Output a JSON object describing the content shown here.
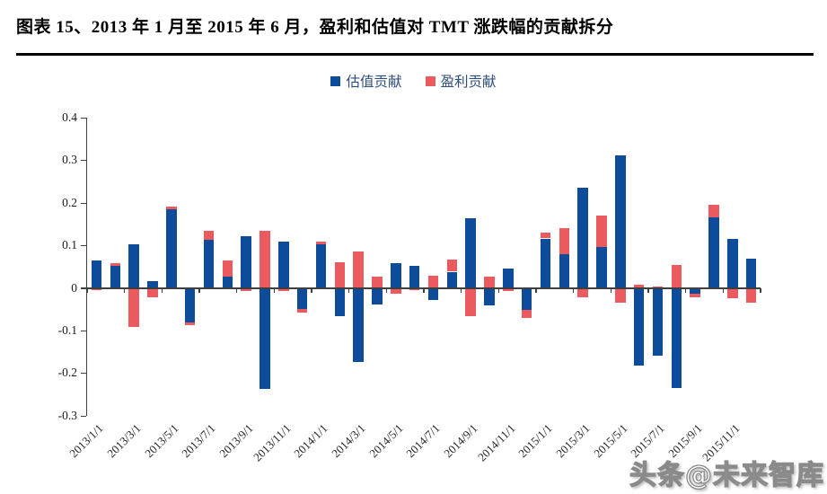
{
  "figure": {
    "title": "图表 15、2013 年 1 月至 2015 年 6 月，盈利和估值对 TMT 涨跌幅的贡献拆分"
  },
  "watermark": {
    "text": "头条@未来智库"
  },
  "chart_data": {
    "type": "bar",
    "stacked": true,
    "title": "",
    "xlabel": "",
    "ylabel": "",
    "grid": false,
    "legend_position": "top-center",
    "ylim": [
      -0.3,
      0.4
    ],
    "yticks": [
      0.4,
      0.3,
      0.2,
      0.1,
      0,
      -0.1,
      -0.2,
      -0.3
    ],
    "x_tick_labels": [
      "2013/1/1",
      "2013/3/1",
      "2013/5/1",
      "2013/7/1",
      "2013/9/1",
      "2013/11/1",
      "2014/1/1",
      "2014/3/1",
      "2014/5/1",
      "2014/7/1",
      "2014/9/1",
      "2014/11/1",
      "2015/1/1",
      "2015/3/1",
      "2015/5/1",
      "2015/7/1",
      "2015/9/1",
      "2015/11/1"
    ],
    "categories": [
      "2013/1",
      "2013/2",
      "2013/3",
      "2013/4",
      "2013/5",
      "2013/6",
      "2013/7",
      "2013/8",
      "2013/9",
      "2013/10",
      "2013/11",
      "2013/12",
      "2014/1",
      "2014/2",
      "2014/3",
      "2014/4",
      "2014/5",
      "2014/6",
      "2014/7",
      "2014/8",
      "2014/9",
      "2014/10",
      "2014/11",
      "2014/12",
      "2015/1",
      "2015/2",
      "2015/3",
      "2015/4",
      "2015/5",
      "2015/6",
      "2015/7",
      "2015/8",
      "2015/9",
      "2015/10",
      "2015/11",
      "2015/12"
    ],
    "series": [
      {
        "name": "估值贡献",
        "color": "#0D4C9A",
        "values": [
          0.065,
          0.052,
          0.104,
          0.017,
          0.185,
          -0.079,
          0.115,
          0.027,
          0.123,
          -0.237,
          0.109,
          -0.049,
          0.104,
          -0.065,
          -0.173,
          -0.037,
          0.06,
          0.053,
          -0.028,
          0.039,
          0.164,
          -0.04,
          0.046,
          -0.051,
          0.117,
          0.081,
          0.237,
          0.097,
          0.312,
          -0.182,
          -0.158,
          -0.234,
          -0.012,
          0.166,
          0.117,
          0.07
        ]
      },
      {
        "name": "盈利贡献",
        "color": "#EB5A5E",
        "values": [
          -0.005,
          0.008,
          -0.091,
          -0.021,
          0.006,
          -0.007,
          0.021,
          0.039,
          -0.006,
          0.136,
          -0.006,
          -0.008,
          0.006,
          0.062,
          0.087,
          0.027,
          -0.012,
          -0.005,
          0.029,
          0.028,
          -0.065,
          0.028,
          -0.007,
          -0.018,
          0.014,
          0.06,
          -0.021,
          0.073,
          -0.033,
          0.009,
          0.004,
          0.055,
          -0.01,
          0.03,
          -0.024,
          -0.033
        ]
      }
    ]
  }
}
